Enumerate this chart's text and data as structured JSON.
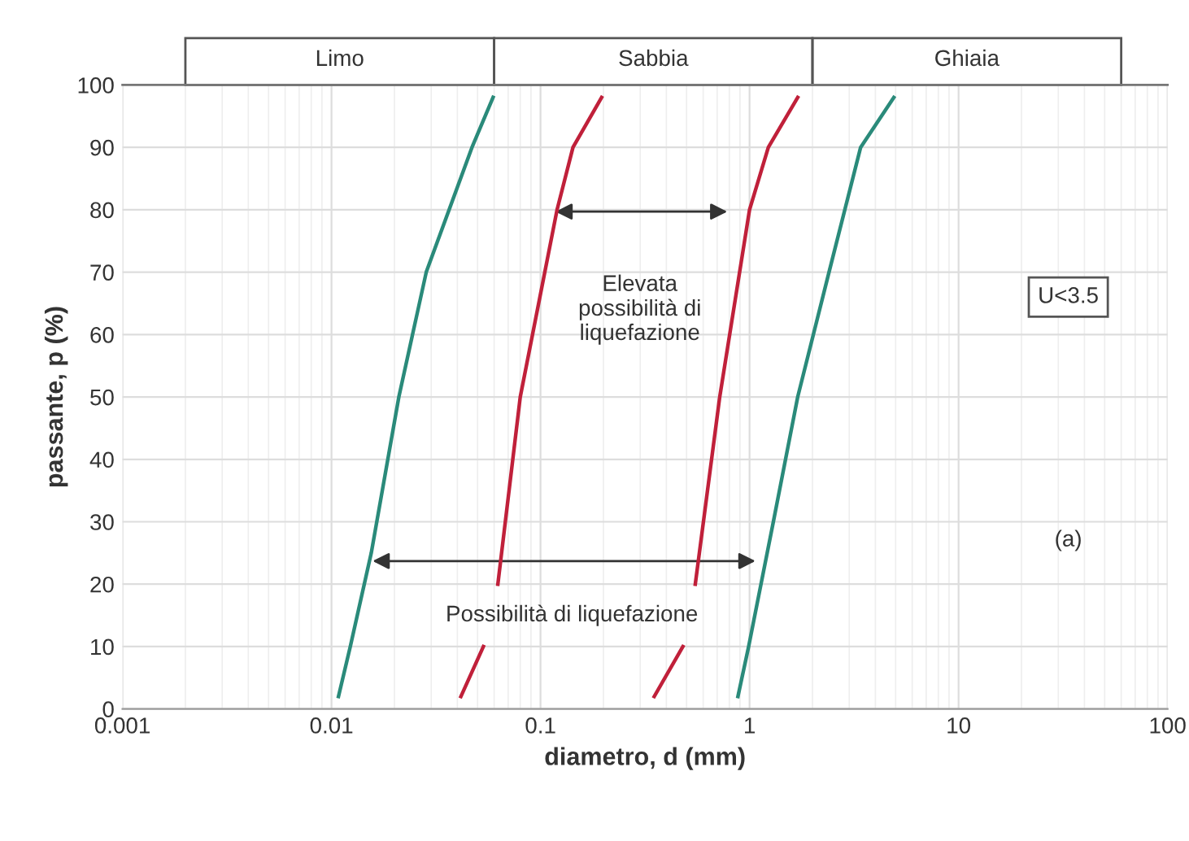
{
  "chart_data": {
    "type": "line",
    "xlabel": "diametro, d (mm)",
    "ylabel": "passante, p (%)",
    "log": "x",
    "xlim": [
      0.001,
      100
    ],
    "xticks": [
      0.001,
      0.01,
      0.1,
      1,
      10,
      100
    ],
    "ylim": [
      0,
      100
    ],
    "yticks": [
      0,
      10,
      20,
      30,
      40,
      50,
      60,
      70,
      80,
      90,
      100
    ],
    "grid": true,
    "marker": "none",
    "line_style": "solid",
    "series": [
      {
        "color": "#2a8a7a",
        "x": [
          0.0108,
          0.0123,
          0.0155,
          0.021,
          0.0284,
          0.047,
          0.0593
        ],
        "values": [
          2,
          10,
          25,
          50,
          70,
          90,
          98
        ]
      },
      {
        "color": "#c0203a",
        "x": [
          0.0416,
          0.0533,
          null,
          0.0625,
          0.08,
          0.12,
          0.143,
          0.196
        ],
        "values": [
          2,
          10,
          null,
          20,
          50,
          80,
          90,
          98
        ]
      },
      {
        "color": "#c0203a",
        "x": [
          0.35,
          0.48,
          null,
          0.55,
          0.72,
          1.0,
          1.23,
          1.7
        ],
        "values": [
          2,
          10,
          null,
          20,
          50,
          80,
          90,
          98
        ]
      },
      {
        "color": "#2a8a7a",
        "x": [
          0.88,
          0.99,
          1.3,
          1.7,
          2.4,
          3.4,
          4.9
        ],
        "values": [
          2,
          10,
          30,
          50,
          70,
          90,
          98
        ]
      }
    ],
    "annotations": [
      "Limo",
      "Sabbia",
      "Ghiaia",
      "Elevata\npossibilità di\nliquefazione",
      "Possibilità di liquefazione",
      "U<3.5",
      "(a)"
    ]
  }
}
